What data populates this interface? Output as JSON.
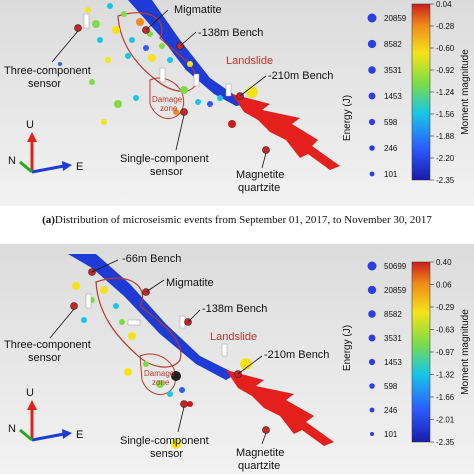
{
  "colors": {
    "background": "#e9e9e9",
    "bench": "#1f3bd6",
    "landslide_zone": "#e3201b",
    "annotation": "#c0392b",
    "sensor": "#cc2222"
  },
  "caption_a": {
    "tag": "(a)",
    "text": "Distribution of microseismic events from September 01, 2017, to November 30, 2017"
  },
  "panel_a": {
    "labels": {
      "migmatite": "Migmatite",
      "bench_138": "-138m Bench",
      "bench_210": "-210m Bench",
      "landslide": "Landslide",
      "damage_zone_1": "Damage",
      "damage_zone_2": "zone",
      "three_comp_1": "Three-component",
      "three_comp_2": "sensor",
      "single_comp_1": "Single-component",
      "single_comp_2": "sensor",
      "magnetite_1": "Magnetite",
      "magnetite_2": "quartzite",
      "axis_u": "U",
      "axis_n": "N",
      "axis_e": "E"
    },
    "energy_title": "Energy (J)",
    "energy_values": [
      "20859",
      "8582",
      "3531",
      "1453",
      "598",
      "246",
      "101"
    ],
    "magnitude_title": "Moment magnitude",
    "magnitude_ticks": [
      "0.04",
      "-0.28",
      "-0.60",
      "-0.92",
      "-1.24",
      "-1.56",
      "-1.88",
      "-2.20",
      "-2.35"
    ]
  },
  "panel_b": {
    "labels": {
      "bench_66": "-66m Bench",
      "migmatite": "Migmatite",
      "bench_138": "-138m Bench",
      "bench_210": "-210m Bench",
      "landslide": "Landslide",
      "damage_zone_1": "Damage",
      "damage_zone_2": "zone",
      "three_comp_1": "Three-component",
      "three_comp_2": "sensor",
      "single_comp_1": "Single-component",
      "single_comp_2": "sensor",
      "magnetite_1": "Magnetite",
      "magnetite_2": "quartzite",
      "axis_u": "U",
      "axis_n": "N",
      "axis_e": "E"
    },
    "energy_title": "Energy (J)",
    "energy_values": [
      "50699",
      "20859",
      "8582",
      "3531",
      "1453",
      "598",
      "246",
      "101"
    ],
    "magnitude_title": "Moment magnitude",
    "magnitude_ticks": [
      "0.40",
      "0.06",
      "-0.29",
      "-0.63",
      "-0.97",
      "-1.32",
      "-1.66",
      "-2.01",
      "-2.35"
    ]
  }
}
